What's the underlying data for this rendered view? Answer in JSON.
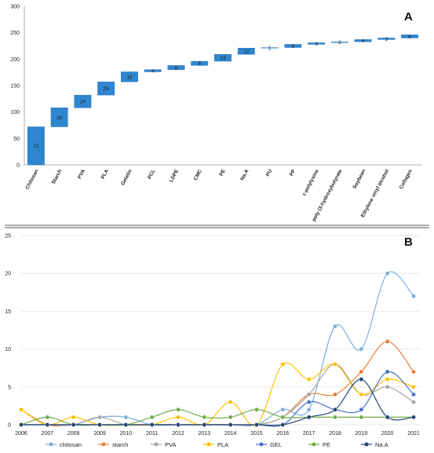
{
  "chart_data": [
    {
      "panel_label": "A",
      "type": "bar",
      "subtype": "waterfall",
      "ylim": [
        0,
        300
      ],
      "y_ticks": [
        "0",
        "50",
        "100",
        "150",
        "200",
        "250",
        "300"
      ],
      "categories": [
        "Chitosan",
        "Starch",
        "PVA",
        "PLA",
        "Gelatin",
        "PCL",
        "LDPE",
        "CMC",
        "PE",
        "Na.A",
        "PU",
        "PP",
        "ε-polylysine",
        "poly (3-hydroxybutyrate",
        "Soybean",
        "Ethylene vinyl alcohol",
        "Collagen"
      ],
      "values": [
        72,
        36,
        24,
        25,
        19,
        4,
        8,
        8,
        13,
        12,
        1,
        6,
        3,
        2,
        4,
        3,
        6
      ],
      "colors": {
        "bar": "#2e86d1",
        "bar_light": "#7fbde9"
      },
      "grid": false
    },
    {
      "panel_label": "B",
      "type": "line",
      "x": [
        "2006",
        "2007",
        "2008",
        "2009",
        "2010",
        "2011",
        "2012",
        "2013",
        "2014",
        "2015",
        "2016",
        "2017",
        "2018",
        "2019",
        "2020",
        "2021"
      ],
      "ylim": [
        0,
        25
      ],
      "y_ticks": [
        "0",
        "5",
        "10",
        "15",
        "20",
        "25"
      ],
      "legend_position": "bottom",
      "grid": true,
      "series": [
        {
          "name": "chitosan",
          "color": "#78aee0",
          "values": [
            0,
            0,
            0,
            1,
            1,
            0,
            0,
            0,
            0,
            0,
            2,
            2,
            13,
            10,
            20,
            17
          ]
        },
        {
          "name": "starch",
          "color": "#ed7d31",
          "values": [
            2,
            0,
            0,
            0,
            0,
            0,
            0,
            0,
            0,
            0,
            1,
            4,
            4,
            7,
            11,
            7
          ]
        },
        {
          "name": "PVA",
          "color": "#a5a5a5",
          "values": [
            0,
            0,
            0,
            1,
            0,
            0,
            0,
            0,
            0,
            0,
            1,
            4,
            8,
            4,
            5,
            3
          ]
        },
        {
          "name": "PLA",
          "color": "#ffc000",
          "values": [
            2,
            0,
            1,
            0,
            0,
            0,
            1,
            0,
            3,
            0,
            8,
            6,
            8,
            4,
            6,
            5
          ]
        },
        {
          "name": "GEL",
          "color": "#4472c4",
          "values": [
            0,
            0,
            0,
            0,
            0,
            0,
            0,
            0,
            0,
            0,
            0,
            3,
            2,
            2,
            7,
            4
          ]
        },
        {
          "name": "PE",
          "color": "#70ad47",
          "values": [
            0,
            1,
            0,
            0,
            0,
            1,
            2,
            1,
            1,
            2,
            1,
            1,
            1,
            1,
            1,
            1
          ]
        },
        {
          "name": "Na.A",
          "color": "#264478",
          "values": [
            0,
            0,
            0,
            0,
            0,
            0,
            0,
            0,
            0,
            0,
            0,
            1,
            2,
            6,
            1,
            1
          ]
        }
      ]
    }
  ]
}
